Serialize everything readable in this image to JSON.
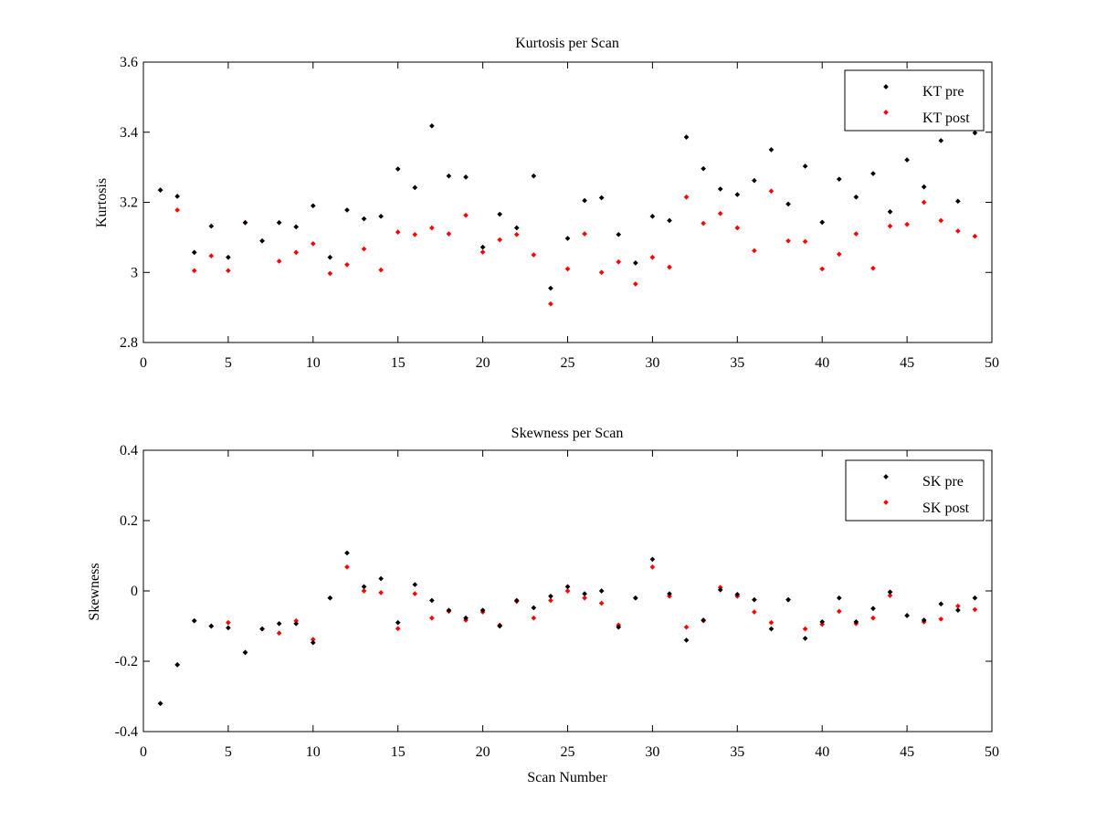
{
  "chart_data": [
    {
      "type": "scatter",
      "title": "Kurtosis per Scan",
      "xlabel": "",
      "ylabel": "Kurtosis",
      "xlim": [
        0,
        50
      ],
      "ylim": [
        2.8,
        3.6
      ],
      "xticks": [
        0,
        5,
        10,
        15,
        20,
        25,
        30,
        35,
        40,
        45,
        50
      ],
      "xtick_labels": [
        "0",
        "5",
        "10",
        "15",
        "20",
        "25",
        "30",
        "35",
        "40",
        "45",
        "50"
      ],
      "yticks": [
        2.8,
        3.0,
        3.2,
        3.4,
        3.6
      ],
      "ytick_labels": [
        "2.8",
        "3",
        "3.2",
        "3.4",
        "3.6"
      ],
      "grid": false,
      "legend_position": "top-right",
      "x": [
        1,
        2,
        3,
        4,
        5,
        6,
        7,
        8,
        9,
        10,
        11,
        12,
        13,
        14,
        15,
        16,
        17,
        18,
        19,
        20,
        21,
        22,
        23,
        24,
        25,
        26,
        27,
        28,
        29,
        30,
        31,
        32,
        33,
        34,
        35,
        36,
        37,
        38,
        39,
        40,
        41,
        42,
        43,
        44,
        45,
        46,
        47,
        48,
        49
      ],
      "series": [
        {
          "name": "KT pre",
          "color": "#000000",
          "values": [
            3.235,
            3.217,
            3.057,
            3.132,
            3.043,
            3.142,
            3.09,
            3.142,
            3.13,
            3.19,
            3.043,
            3.178,
            3.153,
            3.16,
            3.295,
            3.242,
            3.418,
            3.275,
            3.272,
            3.072,
            3.166,
            3.127,
            3.275,
            2.955,
            3.097,
            3.205,
            3.213,
            3.108,
            3.027,
            3.16,
            3.148,
            3.386,
            3.296,
            3.238,
            3.222,
            3.262,
            3.35,
            3.195,
            3.303,
            3.143,
            3.266,
            3.215,
            3.282,
            3.173,
            3.321,
            3.244,
            3.376,
            3.203,
            3.398
          ]
        },
        {
          "name": "KT post",
          "color": "#ff0000",
          "values": [
            3.235,
            3.178,
            3.005,
            3.047,
            3.005,
            3.142,
            3.09,
            3.032,
            3.057,
            3.082,
            2.997,
            3.022,
            3.067,
            3.007,
            3.115,
            3.108,
            3.127,
            3.11,
            3.163,
            3.058,
            3.093,
            3.108,
            3.05,
            2.91,
            3.01,
            3.11,
            3.0,
            3.03,
            2.967,
            3.043,
            3.015,
            3.215,
            3.14,
            3.168,
            3.127,
            3.062,
            3.232,
            3.09,
            3.088,
            3.01,
            3.052,
            3.11,
            3.012,
            3.132,
            3.137,
            3.2,
            3.148,
            3.118,
            3.103
          ]
        }
      ]
    },
    {
      "type": "scatter",
      "title": "Skewness per Scan",
      "xlabel": "Scan Number",
      "ylabel": "Skewness",
      "xlim": [
        0,
        50
      ],
      "ylim": [
        -0.4,
        0.4
      ],
      "xticks": [
        0,
        5,
        10,
        15,
        20,
        25,
        30,
        35,
        40,
        45,
        50
      ],
      "xtick_labels": [
        "0",
        "5",
        "10",
        "15",
        "20",
        "25",
        "30",
        "35",
        "40",
        "45",
        "50"
      ],
      "yticks": [
        -0.4,
        -0.2,
        0,
        0.2,
        0.4
      ],
      "ytick_labels": [
        "-0.4",
        "-0.2",
        "0",
        "0.2",
        "0.4"
      ],
      "grid": false,
      "legend_position": "top-right",
      "x": [
        1,
        2,
        3,
        4,
        5,
        6,
        7,
        8,
        9,
        10,
        11,
        12,
        13,
        14,
        15,
        16,
        17,
        18,
        19,
        20,
        21,
        22,
        23,
        24,
        25,
        26,
        27,
        28,
        29,
        30,
        31,
        32,
        33,
        34,
        35,
        36,
        37,
        38,
        39,
        40,
        41,
        42,
        43,
        44,
        45,
        46,
        47,
        48,
        49
      ],
      "series": [
        {
          "name": "SK pre",
          "color": "#000000",
          "values": [
            -0.32,
            -0.21,
            -0.085,
            -0.1,
            -0.105,
            -0.175,
            -0.108,
            -0.093,
            -0.093,
            -0.147,
            -0.02,
            0.108,
            0.012,
            0.035,
            -0.09,
            0.018,
            -0.027,
            -0.055,
            -0.077,
            -0.055,
            -0.1,
            -0.027,
            -0.048,
            -0.015,
            0.012,
            -0.008,
            0.0,
            -0.103,
            -0.02,
            0.09,
            -0.008,
            -0.14,
            -0.083,
            0.003,
            -0.01,
            -0.025,
            -0.108,
            -0.025,
            -0.135,
            -0.088,
            -0.02,
            -0.088,
            -0.05,
            -0.003,
            -0.07,
            -0.083,
            -0.037,
            -0.055,
            -0.02
          ]
        },
        {
          "name": "SK post",
          "color": "#ff0000",
          "values": [
            -0.32,
            -0.21,
            -0.085,
            -0.1,
            -0.09,
            -0.175,
            -0.108,
            -0.12,
            -0.085,
            -0.138,
            -0.02,
            0.068,
            0.0,
            -0.005,
            -0.107,
            -0.008,
            -0.077,
            -0.058,
            -0.083,
            -0.06,
            -0.097,
            -0.03,
            -0.077,
            -0.027,
            0.0,
            -0.02,
            -0.035,
            -0.097,
            -0.02,
            0.068,
            -0.015,
            -0.103,
            -0.085,
            0.01,
            -0.015,
            -0.06,
            -0.09,
            -0.025,
            -0.108,
            -0.095,
            -0.058,
            -0.093,
            -0.077,
            -0.013,
            -0.07,
            -0.088,
            -0.08,
            -0.043,
            -0.053
          ]
        }
      ]
    }
  ]
}
